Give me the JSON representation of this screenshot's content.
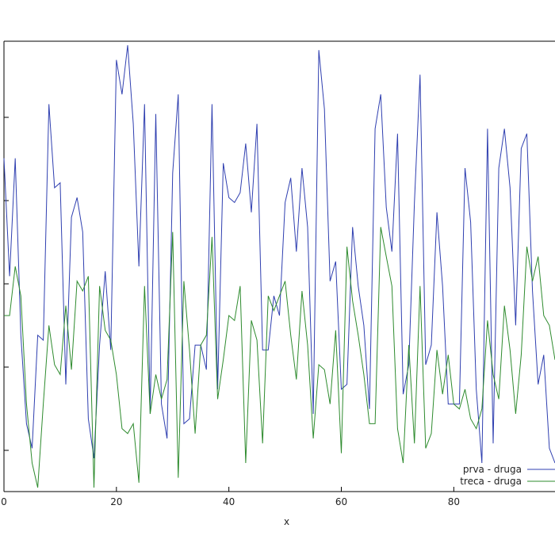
{
  "chart_data": {
    "type": "line",
    "xlabel": "x",
    "ylabel": "",
    "xlim": [
      0,
      98
    ],
    "x_ticks": [
      0,
      20,
      40,
      60,
      80
    ],
    "legend_position": "bottom-right",
    "grid": false,
    "x": [
      0,
      1,
      2,
      3,
      4,
      5,
      6,
      7,
      8,
      9,
      10,
      11,
      12,
      13,
      14,
      15,
      16,
      17,
      18,
      19,
      20,
      21,
      22,
      23,
      24,
      25,
      26,
      27,
      28,
      29,
      30,
      31,
      32,
      33,
      34,
      35,
      36,
      37,
      38,
      39,
      40,
      41,
      42,
      43,
      44,
      45,
      46,
      47,
      48,
      49,
      50,
      51,
      52,
      53,
      54,
      55,
      56,
      57,
      58,
      59,
      60,
      61,
      62,
      63,
      64,
      65,
      66,
      67,
      68,
      69,
      70,
      71,
      72,
      73,
      74,
      75,
      76,
      77,
      78,
      79,
      80,
      81,
      82,
      83,
      84,
      85,
      86,
      87,
      88,
      89,
      90,
      91,
      92,
      93,
      94,
      95,
      96,
      97,
      98
    ],
    "series": [
      {
        "name": "prva - druga",
        "color": "#2f3fb0",
        "values": [
          0.62,
          0.38,
          0.62,
          0.26,
          0.08,
          0.03,
          0.26,
          0.25,
          0.73,
          0.56,
          0.57,
          0.16,
          0.5,
          0.54,
          0.47,
          0.09,
          0.01,
          0.24,
          0.39,
          0.23,
          0.82,
          0.75,
          0.85,
          0.69,
          0.4,
          0.73,
          0.1,
          0.71,
          0.12,
          0.05,
          0.59,
          0.75,
          0.08,
          0.09,
          0.24,
          0.24,
          0.19,
          0.73,
          0.15,
          0.61,
          0.54,
          0.53,
          0.55,
          0.65,
          0.51,
          0.69,
          0.23,
          0.23,
          0.34,
          0.3,
          0.53,
          0.58,
          0.43,
          0.6,
          0.48,
          0.1,
          0.84,
          0.72,
          0.37,
          0.41,
          0.15,
          0.16,
          0.48,
          0.36,
          0.28,
          0.11,
          0.68,
          0.75,
          0.52,
          0.43,
          0.67,
          0.14,
          0.2,
          0.53,
          0.79,
          0.2,
          0.24,
          0.51,
          0.36,
          0.12,
          0.12,
          0.12,
          0.6,
          0.49,
          0.15,
          0.0,
          0.68,
          0.04,
          0.6,
          0.68,
          0.56,
          0.28,
          0.64,
          0.67,
          0.35,
          0.16,
          0.22,
          0.03,
          0.0
        ]
      },
      {
        "name": "treca - druga",
        "color": "#2e8b2e",
        "values": [
          0.3,
          0.3,
          0.4,
          0.34,
          0.12,
          0.0,
          -0.05,
          0.12,
          0.28,
          0.2,
          0.18,
          0.32,
          0.19,
          0.37,
          0.35,
          0.38,
          -0.05,
          0.36,
          0.27,
          0.25,
          0.18,
          0.07,
          0.06,
          0.08,
          -0.04,
          0.36,
          0.1,
          0.18,
          0.13,
          0.17,
          0.47,
          -0.03,
          0.37,
          0.23,
          0.06,
          0.24,
          0.26,
          0.46,
          0.13,
          0.21,
          0.3,
          0.29,
          0.36,
          0.0,
          0.29,
          0.25,
          0.04,
          0.34,
          0.31,
          0.34,
          0.37,
          0.26,
          0.17,
          0.35,
          0.24,
          0.05,
          0.2,
          0.19,
          0.12,
          0.27,
          0.02,
          0.44,
          0.33,
          0.26,
          0.18,
          0.08,
          0.08,
          0.48,
          0.42,
          0.36,
          0.07,
          0.0,
          0.24,
          0.04,
          0.36,
          0.03,
          0.06,
          0.23,
          0.14,
          0.22,
          0.12,
          0.11,
          0.15,
          0.09,
          0.07,
          0.11,
          0.29,
          0.18,
          0.13,
          0.32,
          0.23,
          0.1,
          0.22,
          0.44,
          0.37,
          0.42,
          0.3,
          0.28,
          0.21
        ]
      }
    ]
  }
}
